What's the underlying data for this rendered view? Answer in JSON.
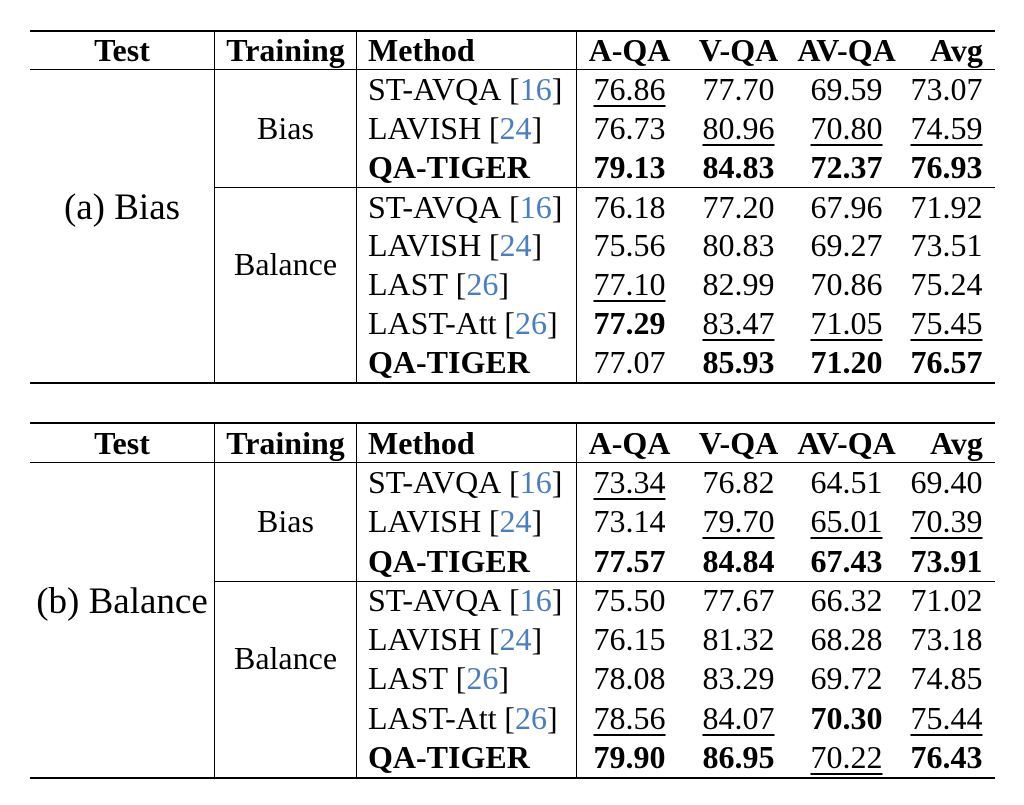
{
  "palette": {
    "text": "#000000",
    "background": "#ffffff",
    "citation_blue": "#4a7ec2",
    "rule": "#000000"
  },
  "misc": {
    "cite_open": "[",
    "cite_close": "]"
  },
  "columns": [
    "Test",
    "Training",
    "Method",
    "A-QA",
    "V-QA",
    "AV-QA",
    "Avg"
  ],
  "tables": [
    {
      "test_label": "(a) Bias",
      "groups": [
        {
          "training": "Bias",
          "rows": [
            {
              "method": "ST-AVQA",
              "cite": "16",
              "bold": false,
              "cells": [
                [
                  "76.86",
                  "u"
                ],
                [
                  "77.70",
                  ""
                ],
                [
                  "69.59",
                  ""
                ],
                [
                  "73.07",
                  ""
                ]
              ]
            },
            {
              "method": "LAVISH",
              "cite": "24",
              "bold": false,
              "cells": [
                [
                  "76.73",
                  ""
                ],
                [
                  "80.96",
                  "u"
                ],
                [
                  "70.80",
                  "u"
                ],
                [
                  "74.59",
                  "u"
                ]
              ]
            },
            {
              "method": "QA-TIGER",
              "cite": "",
              "bold": true,
              "cells": [
                [
                  "79.13",
                  "b"
                ],
                [
                  "84.83",
                  "b"
                ],
                [
                  "72.37",
                  "b"
                ],
                [
                  "76.93",
                  "b"
                ]
              ]
            }
          ]
        },
        {
          "training": "Balance",
          "rows": [
            {
              "method": "ST-AVQA",
              "cite": "16",
              "bold": false,
              "cells": [
                [
                  "76.18",
                  ""
                ],
                [
                  "77.20",
                  ""
                ],
                [
                  "67.96",
                  ""
                ],
                [
                  "71.92",
                  ""
                ]
              ]
            },
            {
              "method": "LAVISH",
              "cite": "24",
              "bold": false,
              "cells": [
                [
                  "75.56",
                  ""
                ],
                [
                  "80.83",
                  ""
                ],
                [
                  "69.27",
                  ""
                ],
                [
                  "73.51",
                  ""
                ]
              ]
            },
            {
              "method": "LAST",
              "cite": "26",
              "bold": false,
              "cells": [
                [
                  "77.10",
                  "u"
                ],
                [
                  "82.99",
                  ""
                ],
                [
                  "70.86",
                  ""
                ],
                [
                  "75.24",
                  ""
                ]
              ]
            },
            {
              "method": "LAST-Att",
              "cite": "26",
              "bold": false,
              "cells": [
                [
                  "77.29",
                  "b"
                ],
                [
                  "83.47",
                  "u"
                ],
                [
                  "71.05",
                  "u"
                ],
                [
                  "75.45",
                  "u"
                ]
              ]
            },
            {
              "method": "QA-TIGER",
              "cite": "",
              "bold": true,
              "cells": [
                [
                  "77.07",
                  ""
                ],
                [
                  "85.93",
                  "b"
                ],
                [
                  "71.20",
                  "b"
                ],
                [
                  "76.57",
                  "b"
                ]
              ]
            }
          ]
        }
      ]
    },
    {
      "test_label": "(b) Balance",
      "groups": [
        {
          "training": "Bias",
          "rows": [
            {
              "method": "ST-AVQA",
              "cite": "16",
              "bold": false,
              "cells": [
                [
                  "73.34",
                  "u"
                ],
                [
                  "76.82",
                  ""
                ],
                [
                  "64.51",
                  ""
                ],
                [
                  "69.40",
                  ""
                ]
              ]
            },
            {
              "method": "LAVISH",
              "cite": "24",
              "bold": false,
              "cells": [
                [
                  "73.14",
                  ""
                ],
                [
                  "79.70",
                  "u"
                ],
                [
                  "65.01",
                  "u"
                ],
                [
                  "70.39",
                  "u"
                ]
              ]
            },
            {
              "method": "QA-TIGER",
              "cite": "",
              "bold": true,
              "cells": [
                [
                  "77.57",
                  "b"
                ],
                [
                  "84.84",
                  "b"
                ],
                [
                  "67.43",
                  "b"
                ],
                [
                  "73.91",
                  "b"
                ]
              ]
            }
          ]
        },
        {
          "training": "Balance",
          "rows": [
            {
              "method": "ST-AVQA",
              "cite": "16",
              "bold": false,
              "cells": [
                [
                  "75.50",
                  ""
                ],
                [
                  "77.67",
                  ""
                ],
                [
                  "66.32",
                  ""
                ],
                [
                  "71.02",
                  ""
                ]
              ]
            },
            {
              "method": "LAVISH",
              "cite": "24",
              "bold": false,
              "cells": [
                [
                  "76.15",
                  ""
                ],
                [
                  "81.32",
                  ""
                ],
                [
                  "68.28",
                  ""
                ],
                [
                  "73.18",
                  ""
                ]
              ]
            },
            {
              "method": "LAST",
              "cite": "26",
              "bold": false,
              "cells": [
                [
                  "78.08",
                  ""
                ],
                [
                  "83.29",
                  ""
                ],
                [
                  "69.72",
                  ""
                ],
                [
                  "74.85",
                  ""
                ]
              ]
            },
            {
              "method": "LAST-Att",
              "cite": "26",
              "bold": false,
              "cells": [
                [
                  "78.56",
                  "u"
                ],
                [
                  "84.07",
                  "u"
                ],
                [
                  "70.30",
                  "b"
                ],
                [
                  "75.44",
                  "u"
                ]
              ]
            },
            {
              "method": "QA-TIGER",
              "cite": "",
              "bold": true,
              "cells": [
                [
                  "79.90",
                  "b"
                ],
                [
                  "86.95",
                  "b"
                ],
                [
                  "70.22",
                  "u"
                ],
                [
                  "76.43",
                  "b"
                ]
              ]
            }
          ]
        }
      ]
    }
  ]
}
